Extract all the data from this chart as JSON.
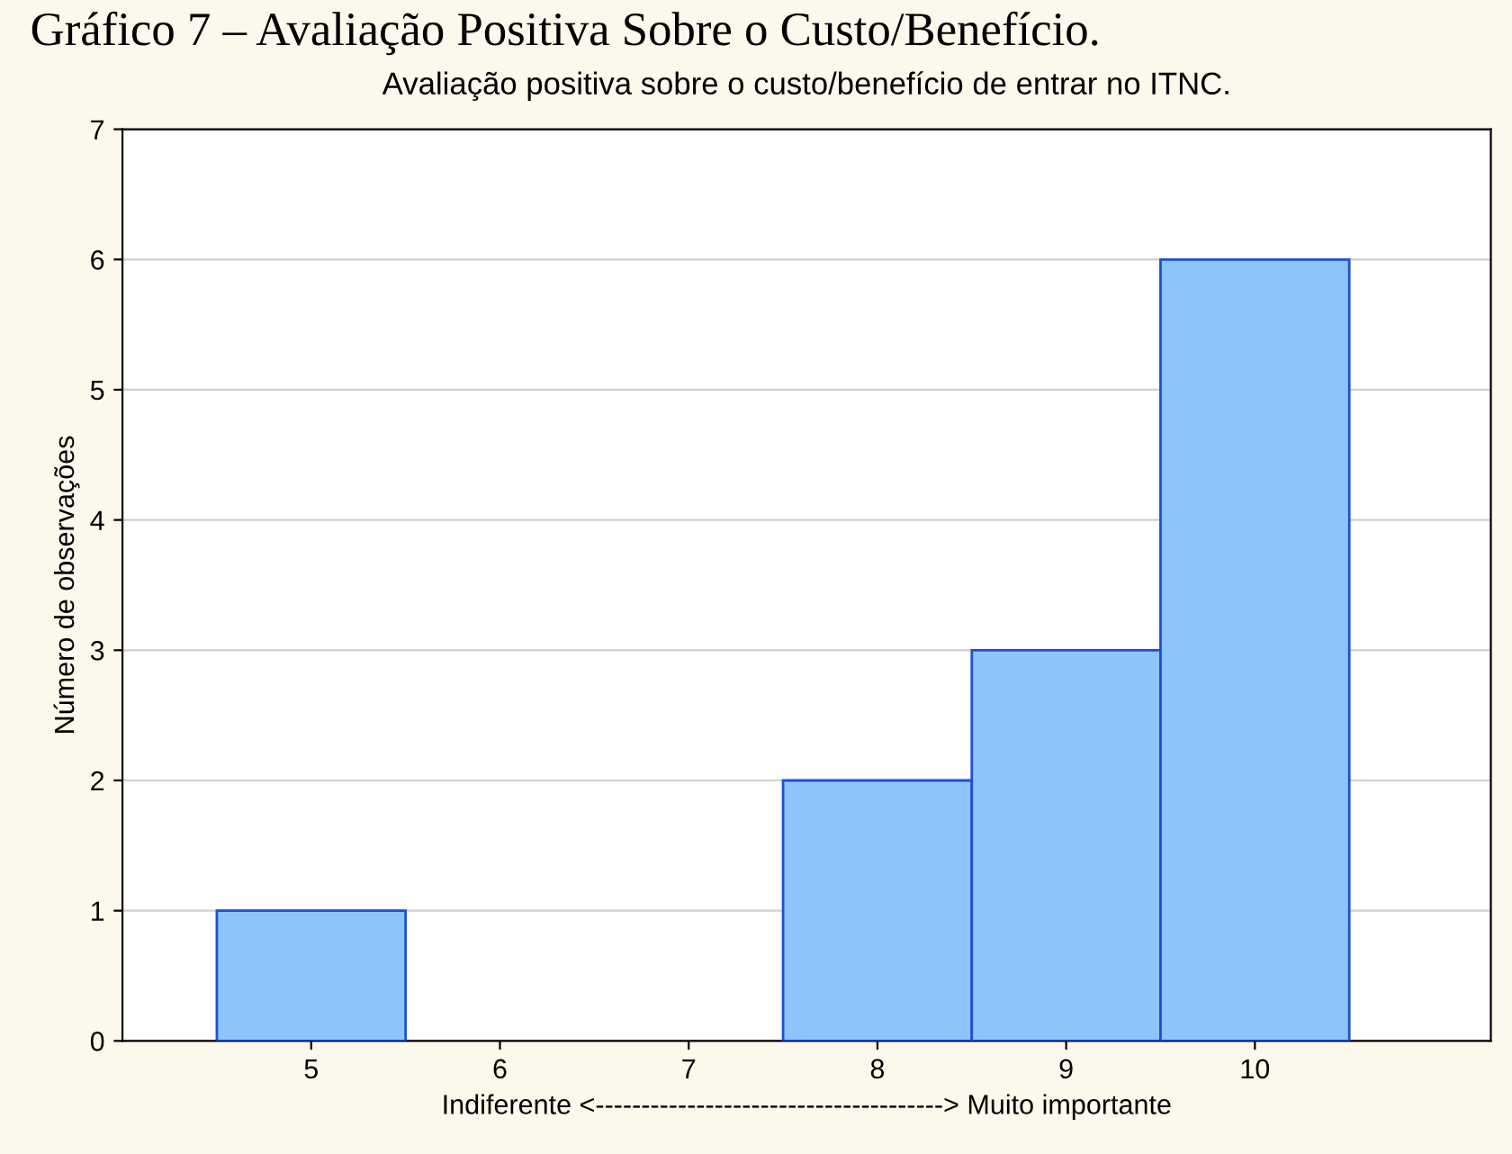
{
  "chart_data": {
    "type": "histogram",
    "title": "Avaliação positiva sobre o custo/benefício de entrar no ITNC.",
    "xlabel": "Indiferente <--------------------------------------> Muito importante",
    "ylabel": "Número de observações",
    "annotations": [
      "Gráfico 7 – Avaliação Positiva Sobre o Custo/Benefício."
    ],
    "bins": [
      4.5,
      5.5,
      6.5,
      7.5,
      8.5,
      9.5,
      10.5
    ],
    "values": [
      1,
      0,
      0,
      2,
      3,
      6
    ],
    "color": "#8cc4fb",
    "xlim": [
      4,
      11.25
    ],
    "xticks": [
      5,
      6,
      7,
      8,
      9,
      10
    ],
    "ylim": [
      0,
      7
    ],
    "yticks": [
      0,
      1,
      2,
      3,
      4,
      5,
      6,
      7
    ],
    "grid": "y"
  }
}
